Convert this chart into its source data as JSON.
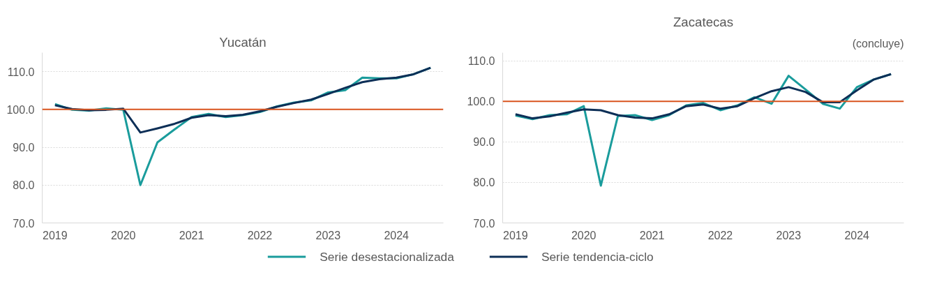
{
  "chart_data": [
    {
      "type": "line",
      "title": "Yucatán",
      "categories": [
        "2019",
        null,
        null,
        null,
        "2020",
        null,
        null,
        null,
        "2021",
        null,
        null,
        null,
        "2022",
        null,
        null,
        null,
        "2023",
        null,
        null,
        null,
        "2024",
        null,
        null
      ],
      "series": [
        {
          "name": "Serie desestacionalizada",
          "color": "#1a9c9c",
          "values": [
            101.4,
            99.9,
            99.7,
            100.3,
            99.9,
            80.0,
            91.3,
            94.7,
            98.0,
            98.8,
            98.0,
            98.5,
            99.3,
            100.8,
            101.8,
            102.4,
            104.5,
            105.1,
            108.4,
            108.2,
            108.2,
            109.3,
            111.0
          ]
        },
        {
          "name": "Serie tendencia-ciclo",
          "color": "#0d2f57",
          "values": [
            101.1,
            100.1,
            99.8,
            99.9,
            100.2,
            93.9,
            95.0,
            96.2,
            97.8,
            98.5,
            98.2,
            98.6,
            99.5,
            100.7,
            101.7,
            102.6,
            104.1,
            105.7,
            107.2,
            108.0,
            108.4,
            109.3,
            111.0
          ]
        }
      ],
      "ylim": [
        70,
        115
      ],
      "yticks": [
        {
          "value": 70,
          "label": "70.0"
        },
        {
          "value": 80,
          "label": "80.0"
        },
        {
          "value": 90,
          "label": "90.0"
        },
        {
          "value": 100,
          "label": "100.0"
        },
        {
          "value": 110,
          "label": "110.0"
        }
      ],
      "grid": "y",
      "legend": "bottom",
      "marker": "none",
      "ref_lines": [
        {
          "axis": "y",
          "value": 100,
          "color": "#d9531e"
        }
      ]
    },
    {
      "type": "line",
      "title": "Zacatecas",
      "annotations": [
        "(concluye)"
      ],
      "categories": [
        "2019",
        null,
        null,
        null,
        "2020",
        null,
        null,
        null,
        "2021",
        null,
        null,
        null,
        "2022",
        null,
        null,
        null,
        "2023",
        null,
        null,
        null,
        "2024",
        null,
        null
      ],
      "series": [
        {
          "color": "#1a9c9c",
          "values": [
            96.5,
            95.6,
            96.6,
            96.8,
            98.8,
            79.2,
            96.4,
            96.6,
            95.4,
            96.6,
            99.0,
            99.6,
            97.8,
            99.0,
            101.0,
            99.4,
            106.3,
            102.9,
            99.4,
            98.2,
            103.5,
            105.4,
            106.7
          ]
        },
        {
          "color": "#0d2f57",
          "values": [
            96.8,
            95.8,
            96.3,
            97.2,
            98.0,
            97.8,
            96.6,
            96.0,
            95.8,
            96.8,
            98.8,
            99.2,
            98.2,
            98.8,
            100.8,
            102.5,
            103.5,
            102.3,
            99.8,
            99.8,
            102.7,
            105.4,
            106.7
          ]
        }
      ],
      "ylim": [
        70,
        112
      ],
      "yticks": [
        {
          "value": 70,
          "label": "70.0"
        },
        {
          "value": 80,
          "label": "80.0"
        },
        {
          "value": 90,
          "label": "90.0"
        },
        {
          "value": 100,
          "label": "100.0"
        },
        {
          "value": 110,
          "label": "110.0"
        }
      ],
      "grid": "y",
      "marker": "none",
      "ref_lines": [
        {
          "axis": "y",
          "value": 100,
          "color": "#d9531e"
        }
      ]
    }
  ]
}
